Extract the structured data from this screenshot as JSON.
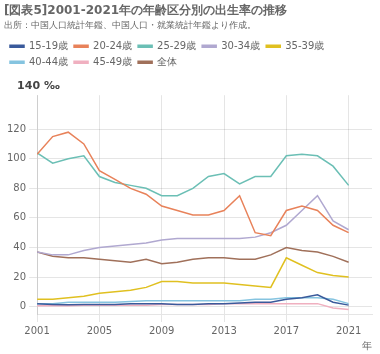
{
  "chart_data": {
    "type": "line",
    "title": "[図表5]2001-2021年の年齢区分別の出生率の推移",
    "subtitle": "出所：中国人口統計年鑑、中国人口・就業統計年鑑より作成。",
    "xlabel": "年",
    "ylabel": "140 ‰",
    "x": [
      2001,
      2002,
      2003,
      2004,
      2005,
      2006,
      2007,
      2008,
      2009,
      2010,
      2011,
      2012,
      2013,
      2014,
      2015,
      2016,
      2017,
      2018,
      2019,
      2020,
      2021
    ],
    "series": [
      {
        "name": "15-19歳",
        "color": "#3a5a9b",
        "values": [
          2,
          1.5,
          1.2,
          1.5,
          1.5,
          1.5,
          2,
          2,
          2,
          1.5,
          1.5,
          2,
          2,
          2.5,
          3,
          3,
          5,
          6,
          8,
          3,
          1
        ]
      },
      {
        "name": "20-24歳",
        "color": "#e8825a",
        "values": [
          103,
          115,
          118,
          110,
          92,
          86,
          80,
          76,
          68,
          65,
          62,
          62,
          65,
          75,
          50,
          48,
          65,
          68,
          65,
          55,
          50
        ]
      },
      {
        "name": "25-29歳",
        "color": "#6bbfb5",
        "values": [
          104,
          97,
          100,
          102,
          88,
          84,
          82,
          80,
          75,
          75,
          80,
          88,
          90,
          83,
          88,
          88,
          102,
          103,
          102,
          95,
          82
        ]
      },
      {
        "name": "30-34歳",
        "color": "#b0a8d0",
        "values": [
          37,
          35,
          35,
          38,
          40,
          41,
          42,
          43,
          45,
          46,
          46,
          46,
          46,
          46,
          47,
          50,
          55,
          65,
          75,
          58,
          52
        ]
      },
      {
        "name": "35-39歳",
        "color": "#e0c020",
        "values": [
          5,
          5,
          6,
          7,
          9,
          10,
          11,
          13,
          17,
          17,
          16,
          16,
          16,
          15,
          14,
          13,
          33,
          28,
          23,
          21,
          20
        ]
      },
      {
        "name": "40-44歳",
        "color": "#85c4e0",
        "values": [
          2,
          2,
          3,
          3,
          3,
          3,
          3.5,
          4,
          4,
          4,
          4,
          4,
          4,
          4,
          5,
          5,
          6,
          6,
          6,
          5,
          2
        ]
      },
      {
        "name": "45-49歳",
        "color": "#f0b0c0",
        "values": [
          0.5,
          0.5,
          0.5,
          1,
          1,
          1,
          1,
          1,
          1.5,
          1.5,
          1.5,
          1.5,
          2,
          2,
          2,
          2,
          2,
          2,
          2,
          -1,
          -2
        ]
      },
      {
        "name": "全体",
        "color": "#a0705a",
        "values": [
          37,
          34,
          33,
          33,
          32,
          31,
          30,
          32,
          29,
          30,
          32,
          33,
          33,
          32,
          32,
          35,
          40,
          38,
          37,
          34,
          30
        ]
      }
    ],
    "xlim": [
      2001,
      2022.5
    ],
    "ylim": [
      -5,
      143
    ],
    "xticks": [
      2001,
      2005,
      2009,
      2013,
      2017,
      2021
    ],
    "yticks": [
      0,
      20,
      40,
      60,
      80,
      100,
      120
    ],
    "grid": true,
    "legend": "top"
  }
}
